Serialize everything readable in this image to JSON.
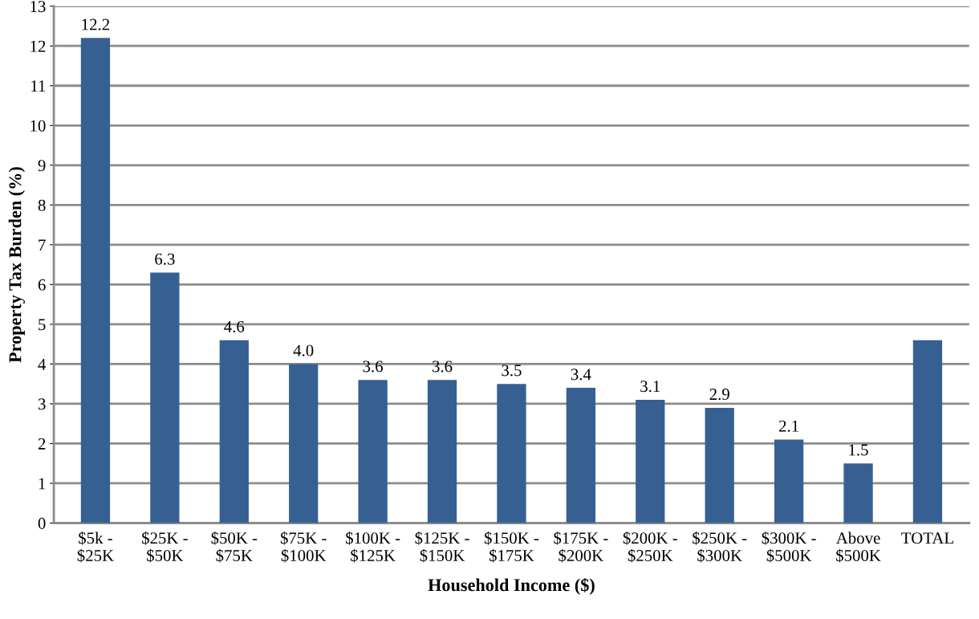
{
  "chart_data": {
    "type": "bar",
    "xlabel": "Household Income ($)",
    "ylabel": "Property Tax Burden (%)",
    "categories": [
      "$5k -\n$25K",
      "$25K -\n$50K",
      "$50K -\n$75K",
      "$75K -\n$100K",
      "$100K -\n$125K",
      "$125K -\n$150K",
      "$150K -\n$175K",
      "$175K -\n$200K",
      "$200K -\n$250K",
      "$250K -\n$300K",
      "$300K -\n$500K",
      "Above\n$500K",
      "TOTAL"
    ],
    "values": [
      12.2,
      6.3,
      4.6,
      4.0,
      3.6,
      3.6,
      3.5,
      3.4,
      3.1,
      2.9,
      2.1,
      1.5,
      4.6
    ],
    "value_labels": [
      "12.2",
      "6.3",
      "4.6",
      "4.0",
      "3.6",
      "3.6",
      "3.5",
      "3.4",
      "3.1",
      "2.9",
      "2.1",
      "1.5",
      null
    ],
    "color": "#376092",
    "ylim": [
      0,
      13
    ],
    "yticks": [
      0,
      1,
      2,
      3,
      4,
      5,
      6,
      7,
      8,
      9,
      10,
      11,
      12,
      13
    ],
    "grid": "y"
  }
}
